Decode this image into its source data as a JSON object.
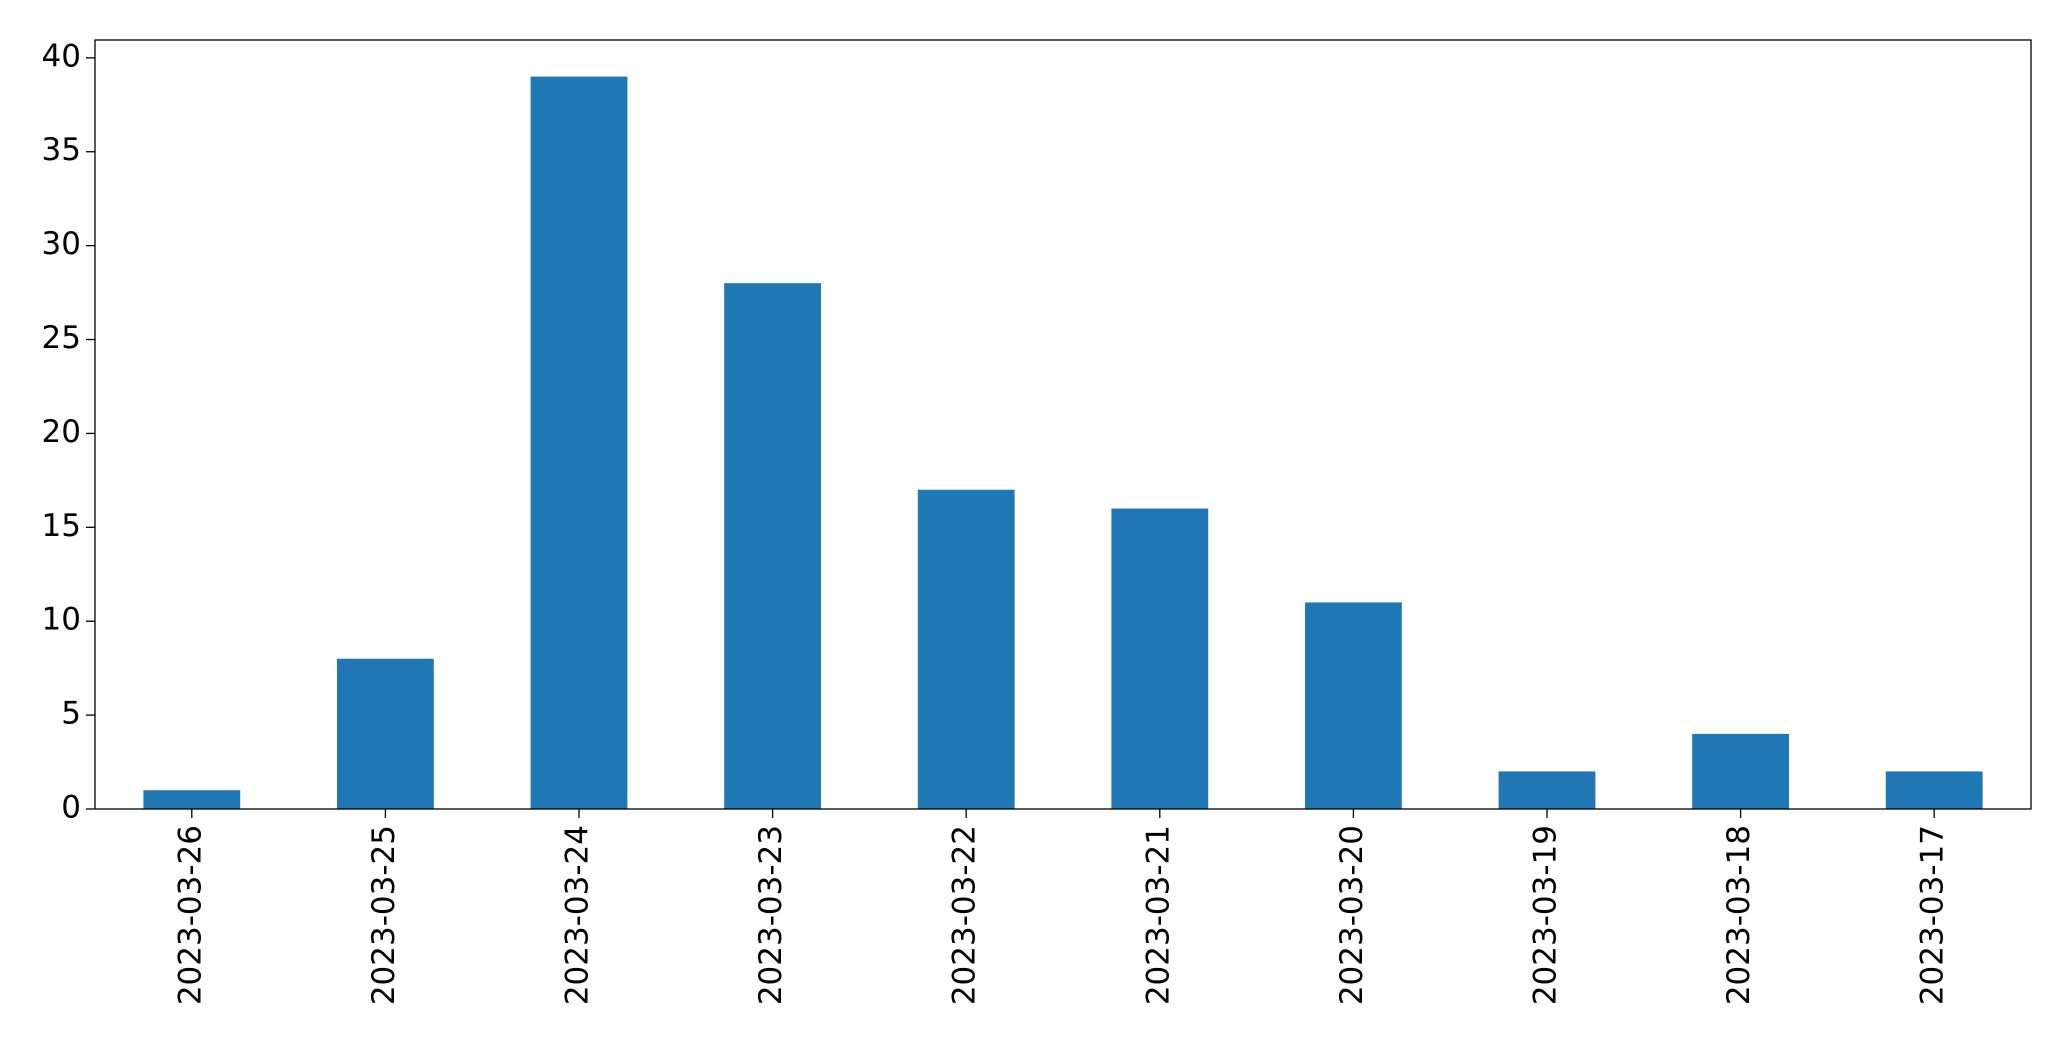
{
  "chart_data": {
    "type": "bar",
    "categories": [
      "2023-03-26",
      "2023-03-25",
      "2023-03-24",
      "2023-03-23",
      "2023-03-22",
      "2023-03-21",
      "2023-03-20",
      "2023-03-19",
      "2023-03-18",
      "2023-03-17"
    ],
    "values": [
      1,
      8,
      39,
      28,
      17,
      16,
      11,
      2,
      4,
      2
    ],
    "color": "#1f77b4",
    "ylim": [
      0,
      40.95
    ],
    "yticks": [
      0,
      5,
      10,
      15,
      20,
      25,
      30,
      35,
      40
    ],
    "grid": false
  }
}
